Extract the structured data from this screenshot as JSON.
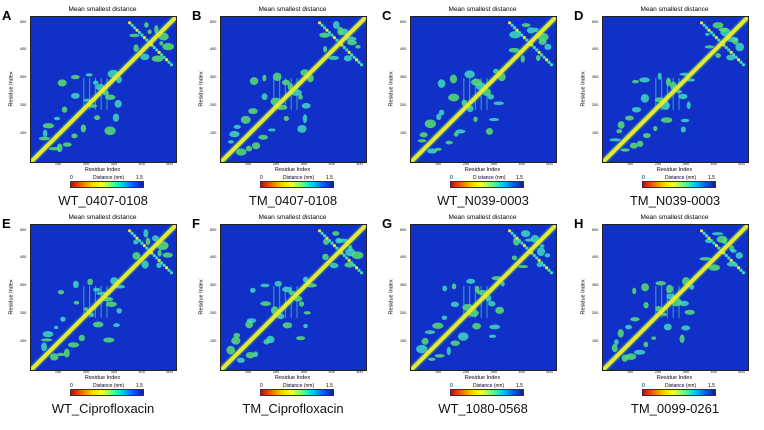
{
  "chart_data": {
    "type": "heatmap",
    "title": "Mean smallest distance",
    "xlabel": "Residue Index",
    "ylabel": "Residue Index",
    "colorbar": {
      "label": "Distance (nm)",
      "min": 0,
      "max": 1.5,
      "label_min": "0",
      "label_max": "1.5"
    },
    "x_ticks": [
      "100",
      "200",
      "300",
      "400",
      "500"
    ],
    "y_ticks": [
      "100",
      "200",
      "300",
      "400",
      "500"
    ],
    "panels": [
      {
        "letter": "A",
        "caption": "WT_0407-0108"
      },
      {
        "letter": "B",
        "caption": "TM_0407-0108"
      },
      {
        "letter": "C",
        "caption": "WT_N039-0003",
        "colorbar_label": "D istance (nm)"
      },
      {
        "letter": "D",
        "caption": "TM_N039-0003"
      },
      {
        "letter": "E",
        "caption": "WT_Ciprofloxacin"
      },
      {
        "letter": "F",
        "caption": "TM_Ciprofloxacin"
      },
      {
        "letter": "G",
        "caption": "WT_1080-0568"
      },
      {
        "letter": "H",
        "caption": "TM_0099-0261"
      }
    ]
  },
  "colors": {
    "background": "#1030c8",
    "diagonal": "#e8e830",
    "contact": "#40d8c0"
  }
}
